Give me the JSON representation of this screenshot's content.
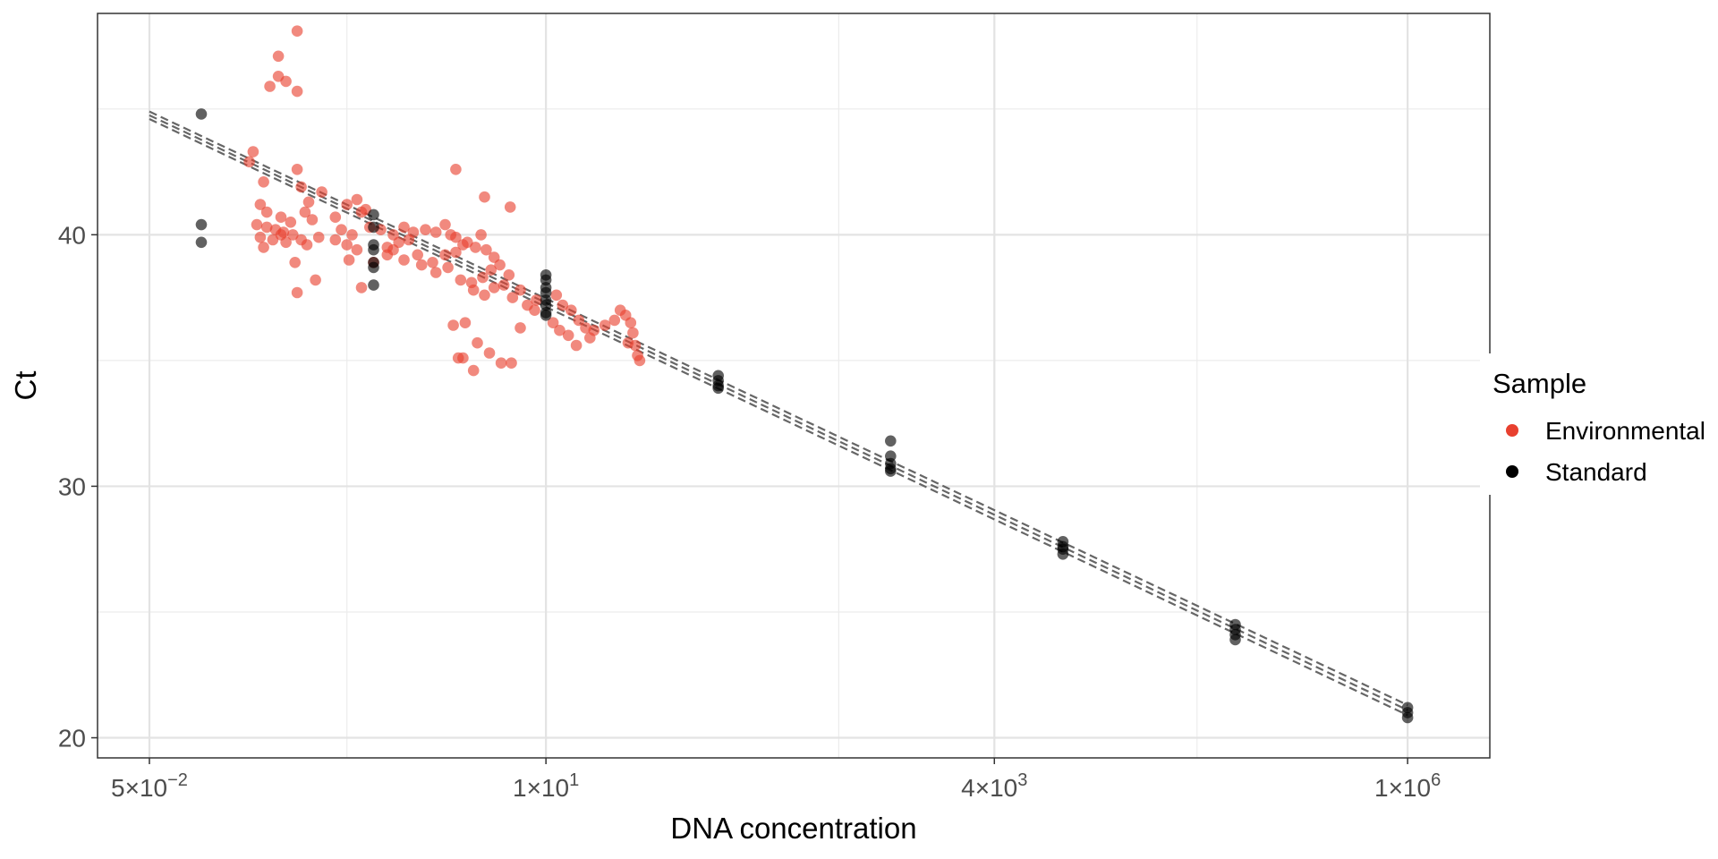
{
  "chart_data": {
    "type": "scatter",
    "xlabel": "DNA concentration",
    "ylabel": "Ct",
    "x_scale": "log10",
    "xlim": [
      0.025,
      3000000
    ],
    "ylim": [
      19.2,
      48.8
    ],
    "x_ticks": [
      {
        "value": 0.05,
        "mant": "5",
        "exp": "−2"
      },
      {
        "value": 10,
        "mant": "1",
        "exp": "1"
      },
      {
        "value": 4000,
        "mant": "4",
        "exp": "3"
      },
      {
        "value": 1000000,
        "mant": "1",
        "exp": "6"
      }
    ],
    "y_ticks": [
      20,
      30,
      40
    ],
    "y_minor": [
      25,
      35,
      45
    ],
    "x_minor": [
      0.7,
      500,
      60000
    ],
    "grid": true,
    "legend": {
      "title": "Sample",
      "position": "right",
      "entries": [
        {
          "label": "Environmental",
          "color": "#E8402F"
        },
        {
          "label": "Standard",
          "color": "#000000"
        }
      ]
    },
    "fit_lines": [
      {
        "x": [
          0.05,
          1000000
        ],
        "y": [
          44.9,
          21.3
        ]
      },
      {
        "x": [
          0.05,
          1000000
        ],
        "y": [
          44.75,
          21.1
        ]
      },
      {
        "x": [
          0.05,
          1000000
        ],
        "y": [
          44.6,
          20.9
        ]
      }
    ],
    "series": [
      {
        "name": "Standard",
        "color": "#000000",
        "points": [
          [
            0.1,
            44.8
          ],
          [
            0.1,
            40.4
          ],
          [
            0.1,
            39.7
          ],
          [
            1,
            40.8
          ],
          [
            1,
            40.3
          ],
          [
            1,
            39.6
          ],
          [
            1,
            39.4
          ],
          [
            1,
            38.9
          ],
          [
            1,
            38.7
          ],
          [
            1,
            38.0
          ],
          [
            10,
            38.4
          ],
          [
            10,
            38.2
          ],
          [
            10,
            37.9
          ],
          [
            10,
            37.7
          ],
          [
            10,
            37.4
          ],
          [
            10,
            37.2
          ],
          [
            10,
            36.9
          ],
          [
            10,
            36.8
          ],
          [
            100,
            34.4
          ],
          [
            100,
            34.2
          ],
          [
            100,
            34.0
          ],
          [
            100,
            33.9
          ],
          [
            1000,
            31.8
          ],
          [
            1000,
            31.2
          ],
          [
            1000,
            30.9
          ],
          [
            1000,
            30.7
          ],
          [
            1000,
            30.6
          ],
          [
            10000,
            27.8
          ],
          [
            10000,
            27.6
          ],
          [
            10000,
            27.5
          ],
          [
            10000,
            27.3
          ],
          [
            100000,
            24.5
          ],
          [
            100000,
            24.3
          ],
          [
            100000,
            24.1
          ],
          [
            100000,
            23.9
          ],
          [
            1000000,
            21.2
          ],
          [
            1000000,
            21.0
          ],
          [
            1000000,
            20.8
          ]
        ]
      },
      {
        "name": "Environmental",
        "color": "#E8402F",
        "points": [
          [
            0.36,
            48.1
          ],
          [
            0.28,
            47.1
          ],
          [
            0.28,
            46.3
          ],
          [
            0.31,
            46.1
          ],
          [
            0.25,
            45.9
          ],
          [
            0.36,
            45.7
          ],
          [
            0.2,
            43.3
          ],
          [
            0.19,
            42.9
          ],
          [
            0.36,
            42.6
          ],
          [
            0.23,
            42.1
          ],
          [
            0.38,
            41.9
          ],
          [
            0.5,
            41.7
          ],
          [
            0.22,
            41.2
          ],
          [
            0.42,
            41.3
          ],
          [
            0.24,
            40.9
          ],
          [
            0.29,
            40.7
          ],
          [
            0.33,
            40.5
          ],
          [
            0.44,
            40.6
          ],
          [
            0.21,
            40.4
          ],
          [
            0.24,
            40.3
          ],
          [
            0.27,
            40.2
          ],
          [
            0.3,
            40.1
          ],
          [
            0.34,
            40.0
          ],
          [
            0.22,
            39.9
          ],
          [
            0.26,
            39.8
          ],
          [
            0.31,
            39.7
          ],
          [
            0.38,
            39.8
          ],
          [
            0.48,
            39.9
          ],
          [
            0.23,
            39.5
          ],
          [
            0.36,
            37.7
          ],
          [
            0.46,
            38.2
          ],
          [
            0.35,
            38.9
          ],
          [
            0.41,
            39.6
          ],
          [
            0.29,
            40.0
          ],
          [
            0.4,
            40.9
          ],
          [
            0.6,
            40.7
          ],
          [
            0.7,
            41.2
          ],
          [
            0.8,
            41.4
          ],
          [
            0.9,
            41.0
          ],
          [
            0.85,
            40.9
          ],
          [
            0.65,
            40.2
          ],
          [
            0.75,
            40.0
          ],
          [
            0.95,
            40.3
          ],
          [
            1.1,
            40.2
          ],
          [
            1.3,
            40.0
          ],
          [
            1.5,
            40.3
          ],
          [
            1.7,
            40.1
          ],
          [
            2.0,
            40.2
          ],
          [
            2.6,
            40.4
          ],
          [
            3.0,
            39.9
          ],
          [
            0.6,
            39.8
          ],
          [
            0.7,
            39.6
          ],
          [
            0.8,
            39.4
          ],
          [
            1.2,
            39.5
          ],
          [
            1.4,
            39.7
          ],
          [
            1.6,
            39.8
          ],
          [
            2.3,
            40.1
          ],
          [
            2.8,
            40.0
          ],
          [
            3.3,
            39.6
          ],
          [
            4.2,
            40.0
          ],
          [
            0.72,
            39.0
          ],
          [
            1.0,
            38.9
          ],
          [
            1.2,
            39.2
          ],
          [
            1.5,
            39.0
          ],
          [
            1.9,
            38.8
          ],
          [
            2.3,
            38.5
          ],
          [
            2.7,
            38.7
          ],
          [
            3.2,
            38.2
          ],
          [
            3.7,
            38.1
          ],
          [
            4.3,
            38.3
          ],
          [
            4.8,
            38.6
          ],
          [
            5.4,
            38.8
          ],
          [
            6.1,
            38.4
          ],
          [
            5.0,
            39.1
          ],
          [
            4.5,
            39.4
          ],
          [
            3.9,
            39.5
          ],
          [
            3.5,
            39.7
          ],
          [
            3.0,
            39.3
          ],
          [
            2.6,
            39.2
          ],
          [
            0.85,
            37.9
          ],
          [
            3.8,
            37.8
          ],
          [
            4.4,
            37.6
          ],
          [
            5.0,
            37.9
          ],
          [
            5.7,
            38.0
          ],
          [
            6.4,
            37.5
          ],
          [
            7.1,
            37.8
          ],
          [
            7.8,
            37.2
          ],
          [
            8.6,
            37.0
          ],
          [
            3.0,
            42.6
          ],
          [
            4.4,
            41.5
          ],
          [
            6.2,
            41.1
          ],
          [
            11.5,
            37.6
          ],
          [
            12.5,
            37.2
          ],
          [
            14.0,
            37.0
          ],
          [
            15.5,
            36.6
          ],
          [
            17.0,
            36.3
          ],
          [
            19.0,
            36.2
          ],
          [
            22.0,
            36.4
          ],
          [
            25.0,
            36.6
          ],
          [
            27.0,
            37.0
          ],
          [
            29.0,
            36.8
          ],
          [
            31.0,
            36.5
          ],
          [
            32.0,
            36.1
          ],
          [
            30.0,
            35.7
          ],
          [
            33.0,
            35.6
          ],
          [
            34.0,
            35.2
          ],
          [
            35.0,
            35.0
          ],
          [
            18.0,
            35.9
          ],
          [
            15.0,
            35.6
          ],
          [
            13.5,
            36.0
          ],
          [
            12.0,
            36.2
          ],
          [
            11.0,
            36.5
          ],
          [
            2.9,
            36.4
          ],
          [
            3.4,
            36.5
          ],
          [
            4.0,
            35.7
          ],
          [
            4.7,
            35.3
          ],
          [
            5.5,
            34.9
          ],
          [
            6.3,
            34.9
          ],
          [
            7.1,
            36.3
          ],
          [
            3.8,
            34.6
          ],
          [
            3.1,
            35.1
          ],
          [
            3.3,
            35.1
          ],
          [
            8.8,
            37.4
          ],
          [
            1.3,
            39.4
          ],
          [
            1.8,
            39.2
          ],
          [
            2.2,
            38.9
          ]
        ]
      }
    ]
  }
}
